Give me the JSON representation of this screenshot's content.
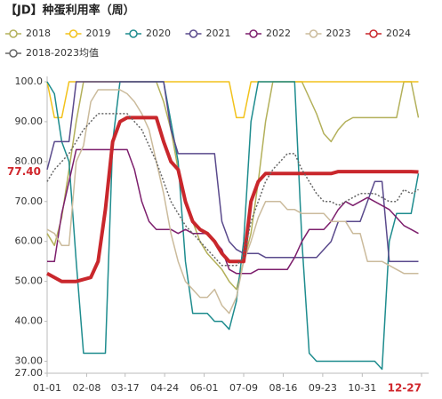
{
  "chart_data": {
    "type": "line",
    "title": "【JD】种蛋利用率（周）",
    "x": [
      0,
      7,
      14,
      21,
      28,
      35,
      42,
      49,
      56,
      63,
      70,
      77,
      84,
      91,
      98,
      105,
      112,
      119,
      126,
      133,
      140,
      147,
      154,
      161,
      168,
      175,
      182,
      189,
      196,
      203,
      210,
      217,
      224,
      231,
      238,
      245,
      252,
      259,
      266,
      273,
      280,
      287,
      294,
      301,
      308,
      315,
      322,
      329,
      336,
      343,
      350,
      357
    ],
    "xlim": [
      0,
      360
    ],
    "xticks": [
      {
        "value": 0,
        "label": "01-01"
      },
      {
        "value": 38,
        "label": "02-08"
      },
      {
        "value": 75,
        "label": "03-17"
      },
      {
        "value": 113,
        "label": "04-24"
      },
      {
        "value": 151,
        "label": "06-01"
      },
      {
        "value": 189,
        "label": "07-09"
      },
      {
        "value": 227,
        "label": "08-16"
      },
      {
        "value": 265,
        "label": "09-23"
      },
      {
        "value": 303,
        "label": "10-31"
      },
      {
        "value": 360,
        "label": "12-27"
      }
    ],
    "ylim": [
      27,
      100
    ],
    "yticks": [
      {
        "value": 27,
        "label": "27.00"
      },
      {
        "value": 30,
        "label": "30.00"
      },
      {
        "value": 40,
        "label": "40.00"
      },
      {
        "value": 50,
        "label": "50.00"
      },
      {
        "value": 60,
        "label": "60.00"
      },
      {
        "value": 70,
        "label": "70.00"
      },
      {
        "value": 80,
        "label": "80.00"
      },
      {
        "value": 90,
        "label": "90.00"
      },
      {
        "value": 100,
        "label": "100.0"
      }
    ],
    "highlight_color": "#d0262c",
    "series": [
      {
        "name": "2018",
        "color": "#b3b05a",
        "values": [
          62,
          59,
          66,
          78,
          90,
          100,
          100,
          100,
          100,
          100,
          100,
          100,
          100,
          100,
          100,
          100,
          95,
          88,
          78,
          70,
          65,
          60,
          57,
          55,
          53,
          50,
          48,
          55,
          62,
          75,
          90,
          100,
          100,
          100,
          100,
          100,
          96,
          92,
          87,
          85,
          88,
          90,
          91,
          91,
          91,
          91,
          91,
          91,
          91,
          100,
          100,
          91
        ]
      },
      {
        "name": "2019",
        "color": "#f2c21b",
        "values": [
          100,
          91,
          91,
          100,
          100,
          100,
          100,
          100,
          100,
          100,
          100,
          100,
          100,
          100,
          100,
          100,
          100,
          100,
          100,
          100,
          100,
          100,
          100,
          100,
          100,
          100,
          91,
          91,
          100,
          100,
          100,
          100,
          100,
          100,
          100,
          100,
          100,
          100,
          100,
          100,
          100,
          100,
          100,
          100,
          100,
          100,
          100,
          100,
          100,
          100,
          100,
          100
        ]
      },
      {
        "name": "2020",
        "color": "#1e8c8e",
        "values": [
          100,
          97,
          85,
          80,
          55,
          32,
          32,
          32,
          32,
          85,
          100,
          100,
          100,
          100,
          100,
          100,
          100,
          90,
          80,
          55,
          42,
          42,
          42,
          40,
          40,
          38,
          45,
          60,
          90,
          100,
          100,
          100,
          100,
          100,
          100,
          60,
          32,
          30,
          30,
          30,
          30,
          30,
          30,
          30,
          30,
          30,
          28,
          60,
          67,
          67,
          67,
          77
        ]
      },
      {
        "name": "2021",
        "color": "#5a4a8c",
        "values": [
          78,
          85,
          85,
          85,
          100,
          100,
          100,
          100,
          100,
          100,
          100,
          100,
          100,
          100,
          100,
          100,
          100,
          88,
          82,
          82,
          82,
          82,
          82,
          82,
          65,
          60,
          58,
          57,
          57,
          57,
          56,
          56,
          56,
          56,
          56,
          56,
          56,
          56,
          58,
          60,
          65,
          65,
          65,
          65,
          70,
          75,
          75,
          55,
          55,
          55,
          55,
          55
        ]
      },
      {
        "name": "2022",
        "color": "#7d1f6d",
        "values": [
          55,
          55,
          67,
          75,
          83,
          83,
          83,
          83,
          83,
          83,
          83,
          83,
          78,
          70,
          65,
          63,
          63,
          63,
          62,
          63,
          62,
          62,
          62,
          60,
          58,
          53,
          52,
          52,
          52,
          53,
          53,
          53,
          53,
          53,
          56,
          60,
          63,
          63,
          63,
          65,
          68,
          70,
          69,
          70,
          71,
          70,
          69,
          68,
          66,
          64,
          63,
          62
        ]
      },
      {
        "name": "2023",
        "color": "#cbbb9c",
        "values": [
          63,
          62,
          59,
          59,
          80,
          84,
          95,
          98,
          98,
          98,
          98,
          97,
          95,
          92,
          88,
          80,
          72,
          62,
          55,
          50,
          48,
          46,
          46,
          48,
          44,
          42,
          46,
          55,
          60,
          66,
          70,
          70,
          70,
          68,
          68,
          67,
          67,
          67,
          67,
          65,
          65,
          65,
          62,
          62,
          55,
          55,
          55,
          54,
          53,
          52,
          52,
          52
        ]
      },
      {
        "name": "2024",
        "color": "#c9272c",
        "width": 4,
        "values": [
          52,
          51,
          50,
          50,
          50,
          50.5,
          51,
          55,
          68,
          85,
          90,
          91,
          91,
          91,
          91,
          91,
          85,
          80,
          78,
          70,
          65,
          63,
          62,
          60,
          57,
          55,
          55,
          55,
          70,
          75,
          77,
          77,
          77,
          77,
          77,
          77,
          77,
          77,
          77,
          77,
          77.5,
          77.5,
          77.5,
          77.5,
          77.5,
          77.5,
          77.5,
          77.5,
          77.5,
          77.5,
          77.5,
          77.4
        ],
        "value_labels": [
          null,
          null,
          null,
          null,
          null,
          null,
          null,
          null,
          null,
          null,
          null,
          null,
          null,
          null,
          null,
          null,
          null,
          null,
          null,
          null,
          null,
          null,
          null,
          null,
          null,
          null,
          null,
          null,
          null,
          null,
          null,
          null,
          null,
          null,
          null,
          null,
          null,
          null,
          null,
          null,
          null,
          null,
          null,
          null,
          null,
          null,
          null,
          null,
          null,
          null,
          null,
          "77.40"
        ]
      },
      {
        "name": "2018-2023均值",
        "color": "#666666",
        "dashed": true,
        "values": [
          75,
          78,
          80,
          82,
          85,
          88,
          90,
          92,
          92,
          92,
          92,
          92,
          90,
          88,
          84,
          80,
          75,
          70,
          67,
          64,
          62,
          60,
          58,
          56,
          54,
          54,
          54,
          56,
          65,
          70,
          75,
          78,
          80,
          82,
          82,
          78,
          75,
          72,
          70,
          70,
          69,
          70,
          71,
          72,
          72,
          72,
          71,
          70,
          70,
          73,
          72,
          73
        ]
      }
    ]
  }
}
